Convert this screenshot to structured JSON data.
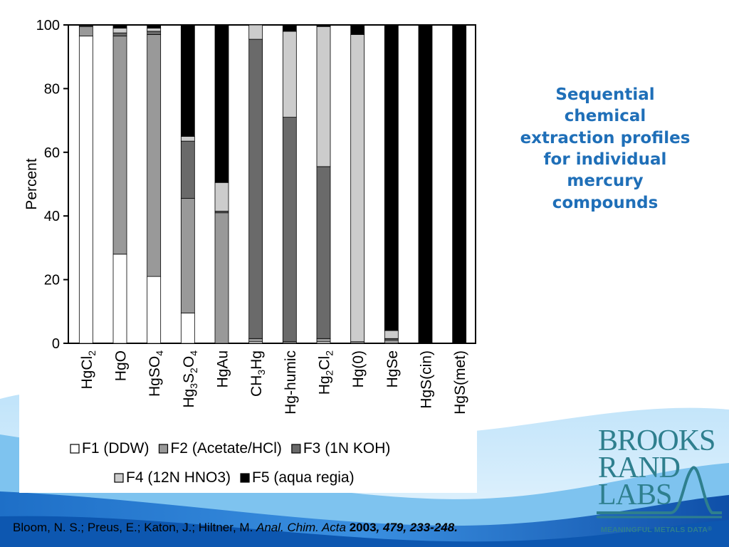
{
  "slide": {
    "title_lines": [
      "Sequential",
      "chemical",
      "extraction profiles",
      "for individual",
      "mercury",
      "compounds"
    ]
  },
  "citation": {
    "authors": "Bloom, N. S.; Preus, E.; Katon, J.; Hiltner, M. ",
    "journal": "Anal. Chim. Acta",
    "year": " 2003",
    "volume_pages": ", 479, 233-248."
  },
  "logo": {
    "line1": "BROOKS",
    "line2": "RAND",
    "line3": "LABS",
    "tagline": "MEANINGFUL METALS DATA",
    "mark": "®"
  },
  "colors": {
    "title": "#1f6fb8",
    "logo": "#2e7f8e",
    "F1": "#ffffff",
    "F2": "#999999",
    "F3": "#6a6a6a",
    "F4": "#cccccc",
    "F5": "#000000"
  },
  "chart_data": {
    "type": "bar",
    "stacked": true,
    "ylabel": "Percent",
    "ylim": [
      0,
      100
    ],
    "yticks": [
      0,
      20,
      40,
      60,
      80,
      100
    ],
    "categories": [
      {
        "base": "HgCl",
        "sub": "2",
        "rest": ""
      },
      {
        "base": "HgO",
        "sub": "",
        "rest": ""
      },
      {
        "base": "HgSO",
        "sub": "4",
        "rest": ""
      },
      {
        "parts": [
          [
            "Hg",
            ""
          ],
          [
            "3",
            "sub"
          ],
          [
            "S",
            ""
          ],
          [
            "2",
            "sub"
          ],
          [
            "O",
            ""
          ],
          [
            "4",
            "sub"
          ]
        ]
      },
      {
        "base": "HgAu",
        "sub": "",
        "rest": ""
      },
      {
        "parts": [
          [
            "CH",
            ""
          ],
          [
            "3",
            "sub"
          ],
          [
            "Hg",
            ""
          ]
        ]
      },
      {
        "base": "Hg-humic",
        "sub": "",
        "rest": ""
      },
      {
        "parts": [
          [
            "Hg",
            ""
          ],
          [
            "2",
            "sub"
          ],
          [
            "Cl",
            ""
          ],
          [
            "2",
            "sub"
          ]
        ]
      },
      {
        "base": "Hg(0)",
        "sub": "",
        "rest": ""
      },
      {
        "base": "HgSe",
        "sub": "",
        "rest": ""
      },
      {
        "base": "HgS(cin)",
        "sub": "",
        "rest": ""
      },
      {
        "base": "HgS(met)",
        "sub": "",
        "rest": ""
      }
    ],
    "series": [
      {
        "name": "F1 (DDW)",
        "key": "F1",
        "values": [
          96.5,
          28,
          21,
          9.5,
          0,
          0.5,
          0,
          0.5,
          0,
          0,
          0,
          0
        ]
      },
      {
        "name": "F2 (Acetate/HCl)",
        "key": "F2",
        "values": [
          3,
          68.5,
          76,
          36,
          41,
          1,
          0.5,
          1,
          0.5,
          1,
          0,
          0
        ]
      },
      {
        "name": "F3 (1N KOH)",
        "key": "F3",
        "values": [
          0.3,
          1,
          1,
          18,
          0.5,
          94,
          70.5,
          54,
          0,
          0.5,
          0,
          0
        ]
      },
      {
        "name": "F4 (12N HNO3)",
        "key": "F4",
        "values": [
          0,
          1.5,
          1,
          1.5,
          9,
          4.5,
          27,
          44,
          96.5,
          2.5,
          0,
          0
        ]
      },
      {
        "name": "F5 (aqua regia)",
        "key": "F5",
        "values": [
          0.2,
          1,
          1,
          35,
          49.5,
          0,
          2,
          0.5,
          3,
          96,
          100,
          100
        ]
      }
    ],
    "legend": {
      "placement": "bottom",
      "rows": [
        [
          "F1",
          "F2",
          "F3"
        ],
        [
          "F4",
          "F5"
        ]
      ]
    },
    "grid": false
  }
}
